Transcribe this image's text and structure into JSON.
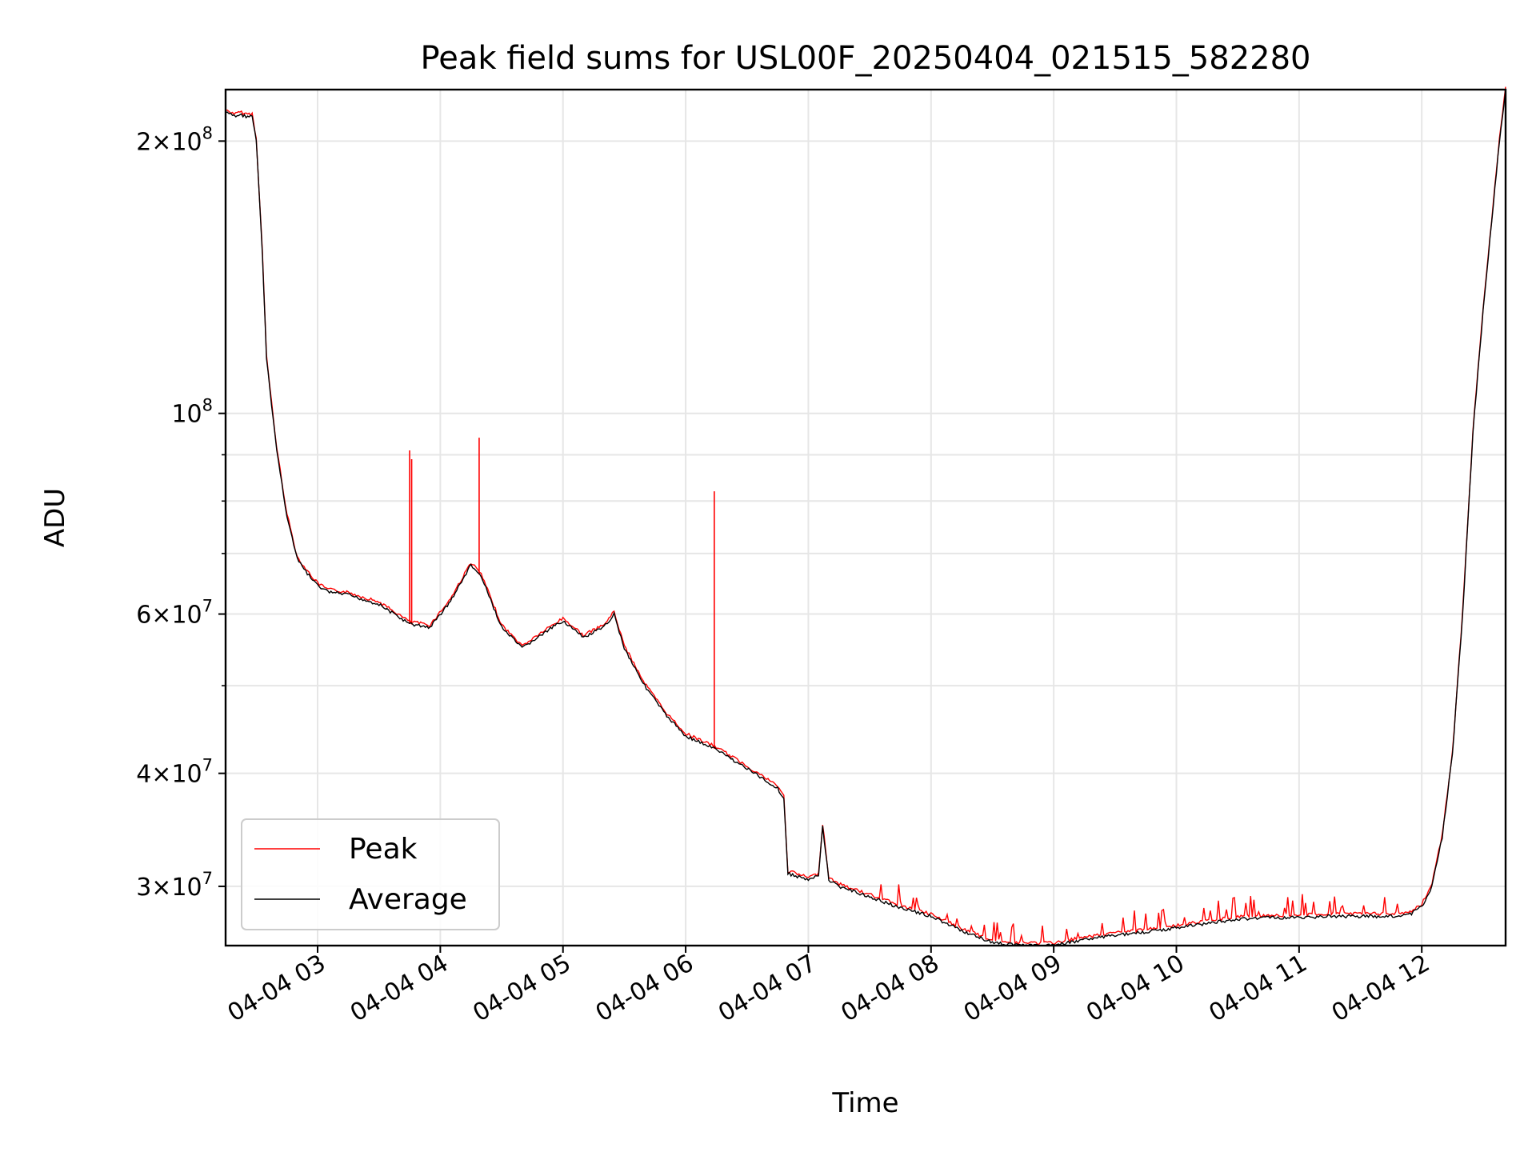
{
  "chart_data": {
    "type": "line",
    "title": "Peak field sums for USL00F_20250404_021515_582280",
    "xlabel": "Time",
    "ylabel": "ADU",
    "xlim": [
      "04-04 02:15",
      "04-04 12:41"
    ],
    "ylim": [
      25800000,
      228000000
    ],
    "yscale": "log",
    "grid": true,
    "legend_position": "lower-left",
    "colors": {
      "Peak": "#ff0000",
      "Average": "#000000"
    },
    "x_ticks": [
      "04-04 03",
      "04-04 04",
      "04-04 05",
      "04-04 06",
      "04-04 07",
      "04-04 08",
      "04-04 09",
      "04-04 10",
      "04-04 11",
      "04-04 12"
    ],
    "y_ticks": [
      {
        "value": 200000000,
        "mantissa": "2",
        "exp": "8"
      },
      {
        "value": 100000000,
        "mantissa": "",
        "exp": "8"
      },
      {
        "value": 60000000,
        "mantissa": "6",
        "exp": "7"
      },
      {
        "value": 40000000,
        "mantissa": "4",
        "exp": "7"
      },
      {
        "value": 30000000,
        "mantissa": "3",
        "exp": "7"
      }
    ],
    "y_minor_ticks": [
      50000000,
      70000000,
      80000000,
      90000000
    ],
    "series": [
      {
        "name": "Average",
        "x": [
          "04-04 02:15",
          "04-04 02:20",
          "04-04 02:22",
          "04-04 02:25",
          "04-04 02:28",
          "04-04 02:30",
          "04-04 02:33",
          "04-04 02:35",
          "04-04 02:40",
          "04-04 02:45",
          "04-04 02:50",
          "04-04 02:55",
          "04-04 03:00",
          "04-04 03:05",
          "04-04 03:15",
          "04-04 03:30",
          "04-04 03:45",
          "04-04 03:55",
          "04-04 04:05",
          "04-04 04:15",
          "04-04 04:20",
          "04-04 04:30",
          "04-04 04:40",
          "04-04 04:50",
          "04-04 05:00",
          "04-04 05:10",
          "04-04 05:20",
          "04-04 05:25",
          "04-04 05:30",
          "04-04 05:40",
          "04-04 05:50",
          "04-04 06:00",
          "04-04 06:15",
          "04-04 06:30",
          "04-04 06:45",
          "04-04 06:48",
          "04-04 06:50",
          "04-04 07:00",
          "04-04 07:05",
          "04-04 07:07",
          "04-04 07:10",
          "04-04 07:15",
          "04-04 07:30",
          "04-04 07:45",
          "04-04 08:00",
          "04-04 08:15",
          "04-04 08:30",
          "04-04 08:45",
          "04-04 09:00",
          "04-04 09:15",
          "04-04 09:30",
          "04-04 09:45",
          "04-04 10:00",
          "04-04 10:15",
          "04-04 10:30",
          "04-04 10:45",
          "04-04 11:00",
          "04-04 11:15",
          "04-04 11:30",
          "04-04 11:45",
          "04-04 11:55",
          "04-04 12:00",
          "04-04 12:05",
          "04-04 12:10",
          "04-04 12:15",
          "04-04 12:20",
          "04-04 12:25",
          "04-04 12:30",
          "04-04 12:35",
          "04-04 12:38",
          "04-04 12:41"
        ],
        "values": [
          215000000,
          213000000,
          214000000,
          213000000,
          213000000,
          200000000,
          150000000,
          115000000,
          91000000,
          77000000,
          69000000,
          66500000,
          64500000,
          63500000,
          63000000,
          61500000,
          58500000,
          58000000,
          62000000,
          68000000,
          66000000,
          58000000,
          55000000,
          57000000,
          59000000,
          56500000,
          58000000,
          60000000,
          55000000,
          50000000,
          46500000,
          44000000,
          42500000,
          40500000,
          38500000,
          37500000,
          31000000,
          30500000,
          30800000,
          35000000,
          30500000,
          30000000,
          29200000,
          28400000,
          27800000,
          26800000,
          26000000,
          25800000,
          25800000,
          26200000,
          26500000,
          26700000,
          27000000,
          27300000,
          27600000,
          27700000,
          27700000,
          27800000,
          27800000,
          27800000,
          28000000,
          28500000,
          30000000,
          34000000,
          42000000,
          60000000,
          95000000,
          130000000,
          170000000,
          200000000,
          228000000
        ]
      },
      {
        "name": "Peak",
        "spikes": [
          {
            "x": "04-04 03:45",
            "value": 91000000
          },
          {
            "x": "04-04 03:46",
            "value": 89000000
          },
          {
            "x": "04-04 04:19",
            "value": 94000000
          },
          {
            "x": "04-04 06:14",
            "value": 82000000
          }
        ]
      }
    ]
  }
}
